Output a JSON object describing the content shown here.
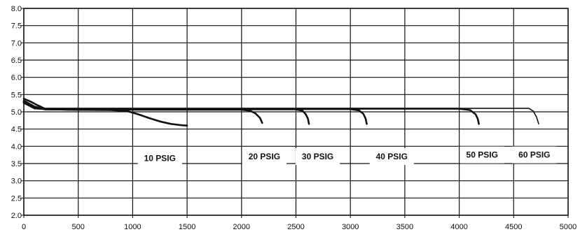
{
  "chart_data": {
    "type": "line",
    "title": "",
    "xlabel": "",
    "ylabel": "",
    "xlim": [
      0,
      5000
    ],
    "ylim": [
      2.0,
      8.0
    ],
    "x_ticks": [
      "0",
      "500",
      "1000",
      "1500",
      "2000",
      "2500",
      "3000",
      "3500",
      "4000",
      "4500",
      "5000"
    ],
    "y_ticks": [
      "2.0",
      "2.5",
      "3.0",
      "3.5",
      "4.0",
      "4.5",
      "5.0",
      "5.5",
      "6.0",
      "6.5",
      "7.0",
      "7.5",
      "8.0"
    ],
    "grid": true,
    "series": [
      {
        "name": "10 PSIG",
        "label_at": [
          1250,
          3.65
        ],
        "thin": false,
        "points": [
          [
            0,
            5.38
          ],
          [
            60,
            5.3
          ],
          [
            120,
            5.2
          ],
          [
            200,
            5.08
          ],
          [
            400,
            5.06
          ],
          [
            800,
            5.05
          ],
          [
            950,
            5.02
          ],
          [
            1050,
            4.93
          ],
          [
            1150,
            4.82
          ],
          [
            1250,
            4.72
          ],
          [
            1350,
            4.65
          ],
          [
            1450,
            4.61
          ],
          [
            1500,
            4.6
          ]
        ]
      },
      {
        "name": "20 PSIG",
        "label_at": [
          2210,
          3.7
        ],
        "thin": false,
        "points": [
          [
            0,
            5.32
          ],
          [
            100,
            5.15
          ],
          [
            200,
            5.07
          ],
          [
            500,
            5.06
          ],
          [
            1000,
            5.06
          ],
          [
            1500,
            5.06
          ],
          [
            2000,
            5.06
          ],
          [
            2080,
            5.03
          ],
          [
            2130,
            4.95
          ],
          [
            2170,
            4.82
          ],
          [
            2190,
            4.68
          ]
        ]
      },
      {
        "name": "30 PSIG",
        "label_at": [
          2700,
          3.7
        ],
        "thin": false,
        "points": [
          [
            0,
            5.3
          ],
          [
            100,
            5.12
          ],
          [
            200,
            5.07
          ],
          [
            1000,
            5.07
          ],
          [
            2000,
            5.07
          ],
          [
            2500,
            5.07
          ],
          [
            2560,
            5.03
          ],
          [
            2590,
            4.93
          ],
          [
            2610,
            4.8
          ],
          [
            2620,
            4.65
          ]
        ]
      },
      {
        "name": "40 PSIG",
        "label_at": [
          3380,
          3.7
        ],
        "thin": false,
        "points": [
          [
            0,
            5.28
          ],
          [
            100,
            5.1
          ],
          [
            200,
            5.08
          ],
          [
            1000,
            5.08
          ],
          [
            2000,
            5.08
          ],
          [
            3000,
            5.08
          ],
          [
            3080,
            5.04
          ],
          [
            3120,
            4.94
          ],
          [
            3140,
            4.8
          ],
          [
            3150,
            4.65
          ]
        ]
      },
      {
        "name": "50 PSIG",
        "label_at": [
          4210,
          3.75
        ],
        "thin": false,
        "points": [
          [
            0,
            5.26
          ],
          [
            100,
            5.1
          ],
          [
            200,
            5.09
          ],
          [
            1000,
            5.09
          ],
          [
            2000,
            5.09
          ],
          [
            3000,
            5.09
          ],
          [
            4000,
            5.09
          ],
          [
            4100,
            5.05
          ],
          [
            4150,
            4.93
          ],
          [
            4170,
            4.8
          ],
          [
            4180,
            4.65
          ]
        ]
      },
      {
        "name": "60 PSIG",
        "label_at": [
          4690,
          3.75
        ],
        "thin": true,
        "points": [
          [
            200,
            5.1
          ],
          [
            1000,
            5.1
          ],
          [
            2000,
            5.1
          ],
          [
            3000,
            5.1
          ],
          [
            4000,
            5.1
          ],
          [
            4640,
            5.1
          ],
          [
            4680,
            5.02
          ],
          [
            4710,
            4.85
          ],
          [
            4730,
            4.65
          ]
        ]
      }
    ]
  }
}
